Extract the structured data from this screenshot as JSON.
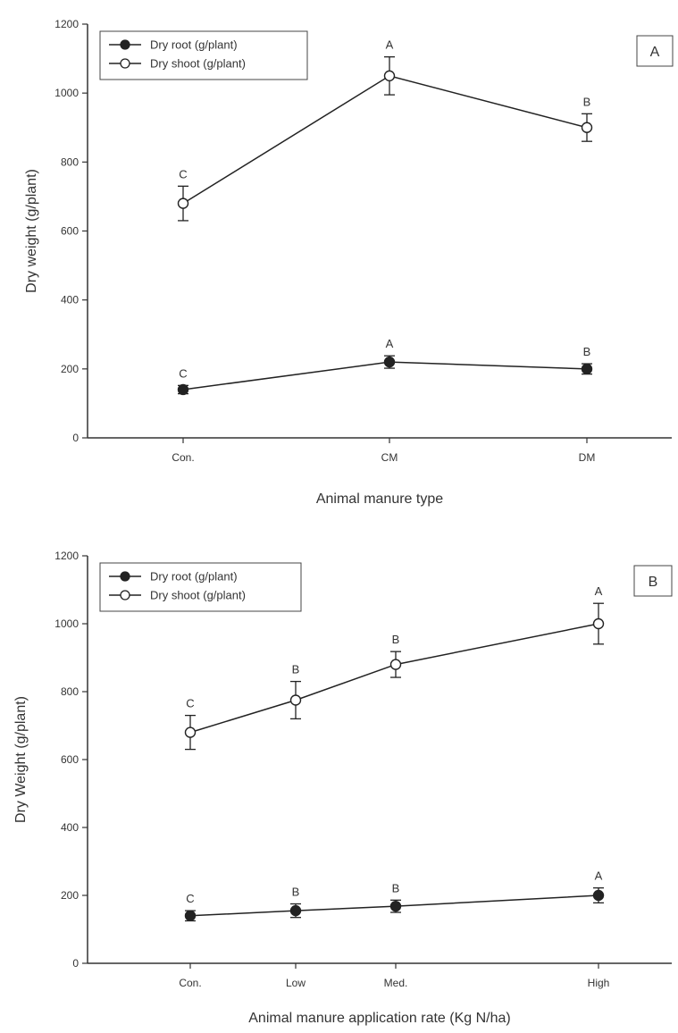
{
  "chart_data": [
    {
      "type": "line",
      "panel_label": "A",
      "categories": [
        "Con.",
        "CM",
        "DM"
      ],
      "xlabel": "Animal manure type",
      "ylabel": "Dry weight (g/plant)",
      "ylim": [
        0,
        1200
      ],
      "yticks": [
        "0",
        "200",
        "400",
        "600",
        "800",
        "1000",
        "1200"
      ],
      "legend_position": "top-left",
      "grid": false,
      "series": [
        {
          "name": "Dry root (g/plant)",
          "marker": "filled-circle",
          "color": "#222222",
          "values": [
            140,
            220,
            200
          ],
          "errors": [
            12,
            18,
            15
          ],
          "letters": [
            "C",
            "A",
            "B"
          ]
        },
        {
          "name": "Dry shoot (g/plant)",
          "marker": "open-circle",
          "color": "#222222",
          "values": [
            680,
            1050,
            900
          ],
          "errors": [
            50,
            55,
            40
          ],
          "letters": [
            "C",
            "A",
            "B"
          ]
        }
      ]
    },
    {
      "type": "line",
      "panel_label": "B",
      "categories": [
        "Con.",
        "Low",
        "Med.",
        "High"
      ],
      "xlabel": "Animal manure application rate (Kg N/ha)",
      "ylabel": "Dry Weight (g/plant)",
      "ylim": [
        0,
        1200
      ],
      "yticks": [
        "0",
        "200",
        "400",
        "600",
        "800",
        "1000",
        "1200"
      ],
      "legend_position": "top-left",
      "grid": false,
      "series": [
        {
          "name": "Dry root (g/plant)",
          "marker": "filled-circle",
          "color": "#222222",
          "values": [
            140,
            155,
            168,
            200
          ],
          "errors": [
            15,
            20,
            18,
            22
          ],
          "letters": [
            "C",
            "B",
            "B",
            "A"
          ]
        },
        {
          "name": "Dry shoot (g/plant)",
          "marker": "open-circle",
          "color": "#222222",
          "values": [
            680,
            775,
            880,
            1000
          ],
          "errors": [
            50,
            55,
            38,
            60
          ],
          "letters": [
            "C",
            "B",
            "B",
            "A"
          ]
        }
      ]
    }
  ]
}
